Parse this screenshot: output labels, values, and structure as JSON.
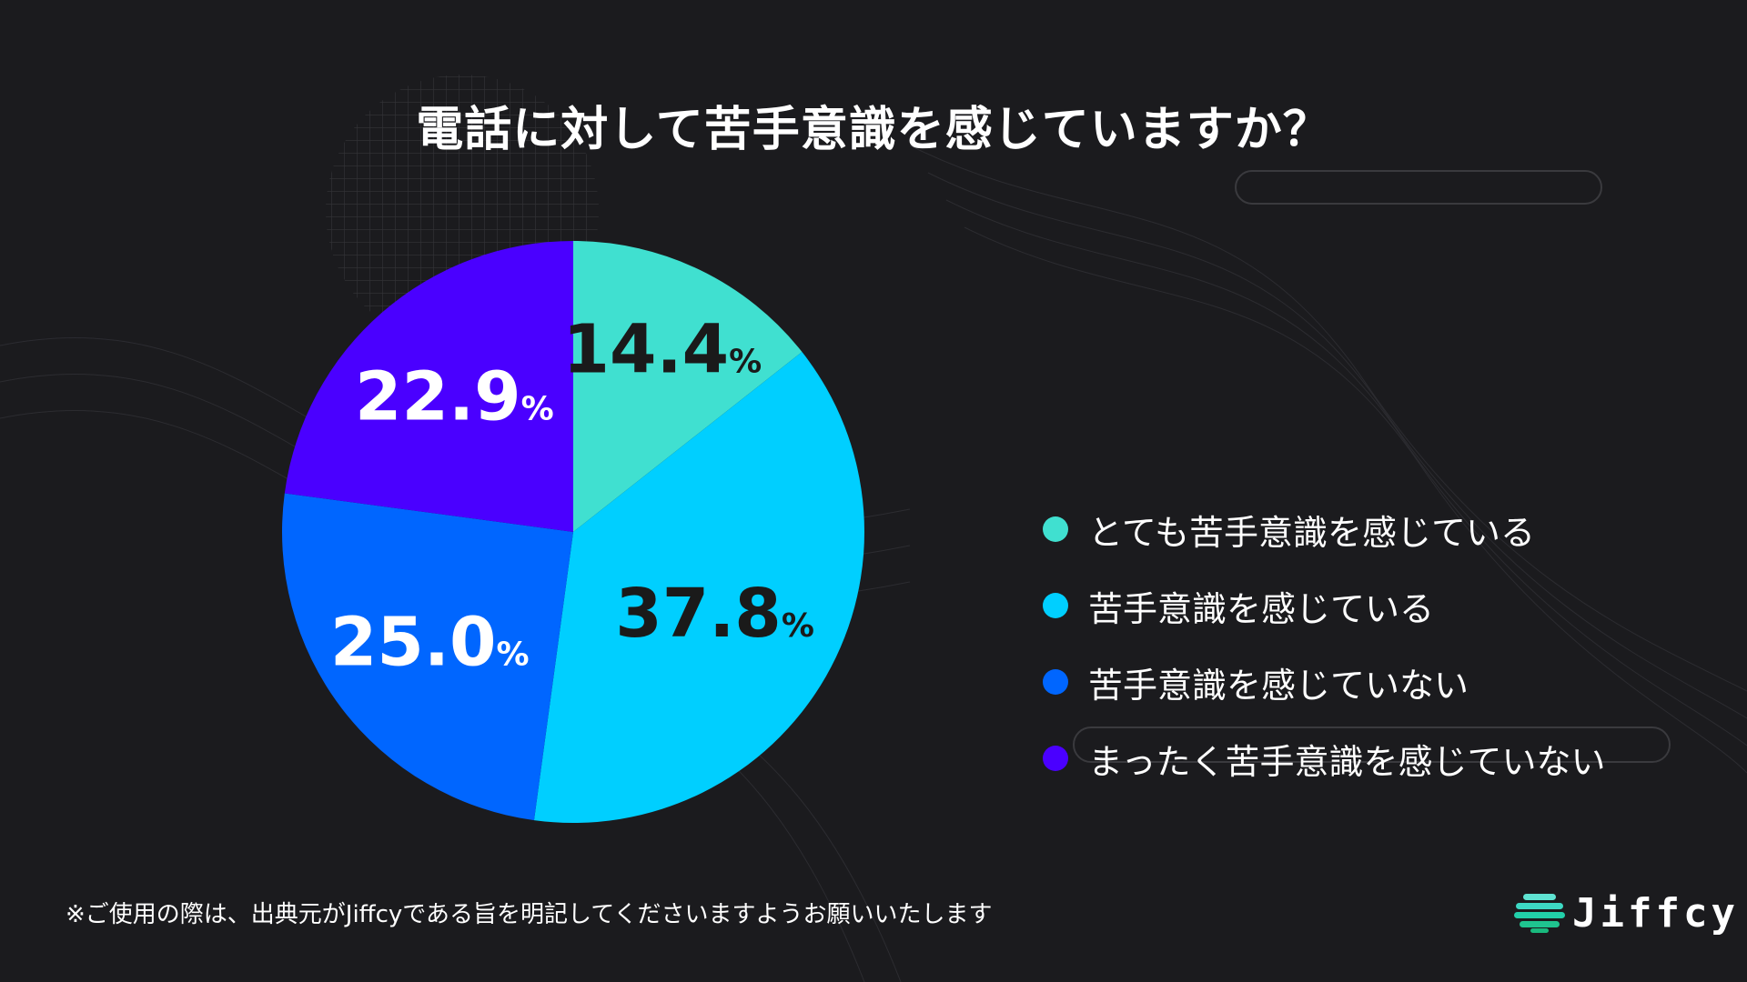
{
  "title": "電話に対して苦手意識を感じていますか？",
  "footnote": "※ご使用の際は、出典元がJiffcyである旨を明記してくださいますようお願いいたします",
  "logo": {
    "text": "Jiffcy",
    "icon": "layered-stripes-logo-icon"
  },
  "colors": {
    "background": "#1b1b1e",
    "very_aware": "#40e0d0",
    "aware": "#00cfff",
    "not_aware": "#0066ff",
    "not_at_all": "#4a00ff"
  },
  "chart_data": {
    "type": "pie",
    "title": "電話に対して苦手意識を感じていますか？",
    "unit": "%",
    "start": "12 o'clock, clockwise",
    "legend_position": "right",
    "slices": [
      {
        "label": "とても苦手意識を感じている",
        "value": 14.4,
        "display": "14.4",
        "color": "#40e0d0",
        "text_color": "#1a1a1a"
      },
      {
        "label": "苦手意識を感じている",
        "value": 37.8,
        "display": "37.8",
        "color": "#00cfff",
        "text_color": "#1a1a1a"
      },
      {
        "label": "苦手意識を感じていない",
        "value": 25.0,
        "display": "25.0",
        "color": "#0066ff",
        "text_color": "#ffffff"
      },
      {
        "label": "まったく苦手意識を感じていない",
        "value": 22.9,
        "display": "22.9",
        "color": "#4a00ff",
        "text_color": "#ffffff"
      }
    ]
  }
}
